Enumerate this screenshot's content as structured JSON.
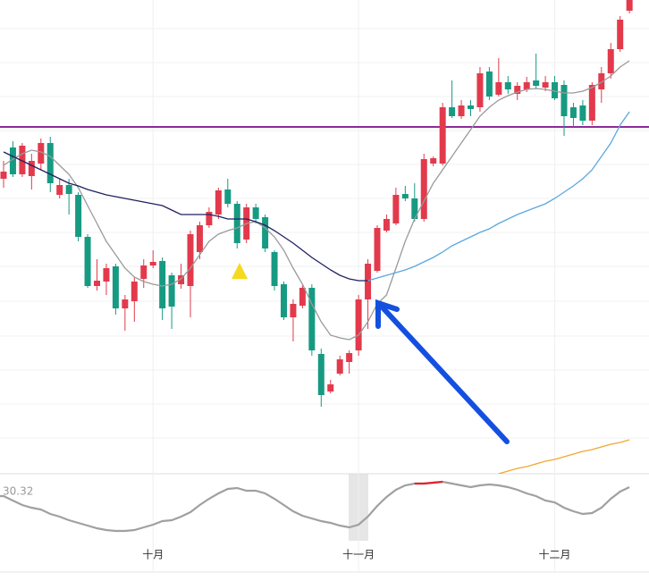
{
  "chart_data": {
    "type": "candlestick",
    "categories": [
      null,
      null,
      null,
      null,
      null,
      null,
      null,
      null,
      null,
      null,
      null,
      null,
      null,
      null,
      null,
      null,
      "十月",
      null,
      null,
      null,
      null,
      null,
      null,
      null,
      null,
      null,
      null,
      null,
      null,
      null,
      null,
      null,
      null,
      null,
      null,
      null,
      null,
      null,
      "十一月",
      null,
      null,
      null,
      null,
      null,
      null,
      null,
      null,
      null,
      null,
      null,
      null,
      null,
      null,
      null,
      null,
      null,
      null,
      null,
      null,
      "十二月",
      null,
      null,
      null,
      null,
      null,
      null,
      null,
      null
    ],
    "open": [
      330,
      365,
      335,
      333,
      347,
      370,
      312,
      323,
      312,
      265,
      210,
      215,
      232,
      185,
      193,
      218,
      233,
      238,
      222,
      212,
      210,
      248,
      278,
      290,
      318,
      302,
      262,
      298,
      287,
      248,
      212,
      175,
      188,
      208,
      134,
      92,
      112,
      125,
      138,
      195,
      227,
      272,
      280,
      313,
      308,
      285,
      347,
      347,
      410,
      400,
      412,
      410,
      450,
      424,
      438,
      425,
      430,
      440,
      432,
      438,
      435,
      410,
      412,
      395,
      430,
      448,
      475,
      518
    ],
    "close": [
      338,
      335,
      367,
      350,
      370,
      325,
      323,
      313,
      265,
      210,
      216,
      230,
      185,
      195,
      215,
      233,
      237,
      185,
      187,
      222,
      268,
      278,
      293,
      317,
      302,
      258,
      298,
      285,
      252,
      210,
      175,
      190,
      208,
      138,
      88,
      100,
      128,
      135,
      195,
      235,
      275,
      285,
      312,
      308,
      285,
      352,
      353,
      410,
      400,
      412,
      408,
      448,
      422,
      438,
      430,
      434,
      438,
      434,
      438,
      420,
      400,
      398,
      395,
      435,
      448,
      475,
      508,
      530
    ],
    "high": [
      350,
      372,
      370,
      358,
      375,
      377,
      330,
      330,
      315,
      268,
      240,
      235,
      235,
      200,
      220,
      240,
      250,
      242,
      225,
      235,
      272,
      282,
      298,
      320,
      330,
      305,
      302,
      302,
      290,
      250,
      215,
      195,
      212,
      212,
      140,
      105,
      132,
      138,
      200,
      240,
      278,
      290,
      320,
      322,
      325,
      358,
      355,
      415,
      440,
      418,
      418,
      455,
      455,
      465,
      445,
      438,
      444,
      470,
      445,
      445,
      440,
      415,
      418,
      438,
      455,
      482,
      512,
      530
    ],
    "low": [
      320,
      332,
      332,
      318,
      340,
      315,
      308,
      290,
      260,
      208,
      205,
      200,
      178,
      160,
      170,
      208,
      230,
      172,
      162,
      207,
      175,
      240,
      275,
      285,
      298,
      252,
      258,
      280,
      248,
      205,
      172,
      148,
      185,
      132,
      75,
      90,
      110,
      112,
      132,
      162,
      225,
      270,
      278,
      305,
      282,
      282,
      344,
      345,
      398,
      397,
      400,
      405,
      418,
      422,
      425,
      418,
      427,
      430,
      428,
      418,
      378,
      388,
      390,
      390,
      415,
      442,
      472,
      515
    ],
    "up_color": "#e23a4c",
    "down_color": "#179a82",
    "ylim": [
      0,
      530
    ],
    "grid": [
      40,
      78,
      116,
      154,
      193,
      232,
      270,
      308,
      346,
      384,
      422,
      460,
      498
    ],
    "hline": {
      "value": 388,
      "color": "#8e2a9a"
    },
    "series": [
      {
        "color": "#9a9a9a",
        "values": [
          345,
          352,
          358,
          362,
          360,
          355,
          345,
          335,
          320,
          300,
          280,
          260,
          245,
          230,
          220,
          215,
          212,
          210,
          212,
          218,
          230,
          245,
          260,
          268,
          272,
          275,
          280,
          282,
          275,
          265,
          250,
          230,
          212,
          190,
          170,
          155,
          152,
          150,
          155,
          170,
          190,
          200,
          230,
          260,
          285,
          305,
          325,
          340,
          355,
          370,
          385,
          400,
          410,
          418,
          423,
          427,
          430,
          431,
          430,
          428,
          426,
          426,
          428,
          432,
          438,
          445,
          455,
          462
        ]
      },
      {
        "color": "#1f2160",
        "values": [
          360,
          355,
          350,
          345,
          340,
          335,
          330,
          325,
          322,
          318,
          315,
          312,
          310,
          308,
          306,
          304,
          302,
          300,
          295,
          290,
          290,
          290,
          290,
          288,
          285,
          285,
          285,
          282,
          278,
          272,
          265,
          258,
          250,
          242,
          235,
          228,
          222,
          218,
          216,
          216,
          null,
          null,
          null,
          null,
          null,
          null,
          null,
          null,
          null,
          null,
          null,
          null,
          null,
          null,
          null,
          null,
          null,
          null,
          null,
          null,
          null,
          null,
          null,
          null,
          null,
          null,
          null,
          null
        ]
      },
      {
        "color": "#5aa8e0",
        "values": [
          null,
          null,
          null,
          null,
          null,
          null,
          null,
          null,
          null,
          null,
          null,
          null,
          null,
          null,
          null,
          null,
          null,
          null,
          null,
          null,
          null,
          null,
          null,
          null,
          null,
          null,
          null,
          null,
          null,
          null,
          null,
          null,
          null,
          null,
          null,
          null,
          null,
          null,
          null,
          216,
          219,
          222,
          225,
          228,
          232,
          237,
          242,
          248,
          255,
          260,
          265,
          270,
          274,
          280,
          285,
          290,
          294,
          298,
          302,
          308,
          315,
          322,
          330,
          340,
          355,
          370,
          390,
          405
        ]
      },
      {
        "color": "#f0a830",
        "values": [
          null,
          null,
          null,
          null,
          null,
          null,
          null,
          null,
          null,
          null,
          null,
          null,
          null,
          null,
          null,
          null,
          null,
          null,
          null,
          null,
          null,
          null,
          null,
          null,
          null,
          null,
          null,
          null,
          null,
          null,
          null,
          null,
          null,
          null,
          null,
          null,
          null,
          null,
          null,
          null,
          null,
          null,
          null,
          null,
          null,
          null,
          null,
          null,
          null,
          null,
          null,
          null,
          null,
          0,
          3,
          6,
          8,
          11,
          14,
          16,
          19,
          22,
          25,
          27,
          30,
          33,
          35,
          38
        ]
      }
    ],
    "indicator": {
      "label": 30.32,
      "color": "#a0a0a0",
      "ylim": [
        0,
        80
      ],
      "values": [
        55,
        50,
        45,
        42,
        40,
        35,
        32,
        28,
        25,
        22,
        19,
        17,
        16,
        16,
        17,
        20,
        23,
        27,
        28,
        32,
        37,
        45,
        52,
        58,
        63,
        64,
        61,
        61,
        58,
        52,
        45,
        38,
        33,
        30,
        27,
        25,
        22,
        20,
        23,
        32,
        44,
        54,
        62,
        67,
        69,
        69,
        70,
        71,
        69,
        67,
        65,
        67,
        68,
        67,
        65,
        62,
        58,
        55,
        50,
        48,
        42,
        38,
        35,
        36,
        42,
        52,
        60,
        65
      ],
      "highlight": {
        "from": 44,
        "to": 47,
        "color": "#e0242f"
      }
    }
  }
}
